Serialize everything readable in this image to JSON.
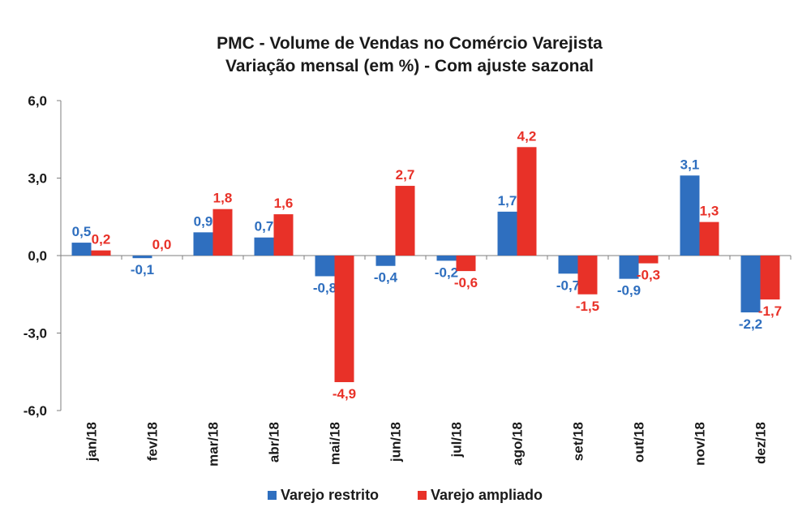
{
  "chart_data": {
    "type": "bar",
    "title": "PMC - Volume de Vendas no Comércio Varejista",
    "subtitle": "Variação mensal (em %) - Com ajuste sazonal",
    "categories": [
      "jan/18",
      "fev/18",
      "mar/18",
      "abr/18",
      "mai/18",
      "jun/18",
      "jul/18",
      "ago/18",
      "set/18",
      "out/18",
      "nov/18",
      "dez/18"
    ],
    "series": [
      {
        "name": "Varejo restrito",
        "color": "#2f6fbf",
        "values": [
          0.5,
          -0.1,
          0.9,
          0.7,
          -0.8,
          -0.4,
          -0.2,
          1.7,
          -0.7,
          -0.9,
          3.1,
          -2.2
        ],
        "labels": [
          "0,5",
          "-0,1",
          "0,9",
          "0,7",
          "-0,8",
          "-0,4",
          "-0,2",
          "1,7",
          "-0,7",
          "-0,9",
          "3,1",
          "-2,2"
        ]
      },
      {
        "name": "Varejo ampliado",
        "color": "#e83128",
        "values": [
          0.2,
          0.0,
          1.8,
          1.6,
          -4.9,
          2.7,
          -0.6,
          4.2,
          -1.5,
          -0.3,
          1.3,
          -1.7
        ],
        "labels": [
          "0,2",
          "0,0",
          "1,8",
          "1,6",
          "-4,9",
          "2,7",
          "-0,6",
          "4,2",
          "-1,5",
          "-0,3",
          "1,3",
          "-1,7"
        ]
      }
    ],
    "ylim": [
      -6,
      6
    ],
    "yticks": [
      6,
      3,
      0,
      -3,
      -6
    ],
    "ytick_labels": [
      "6,0",
      "3,0",
      "0,0",
      "-3,0",
      "-6,0"
    ],
    "grid": false,
    "legend_position": "bottom-center",
    "xlabel": "",
    "ylabel": ""
  }
}
